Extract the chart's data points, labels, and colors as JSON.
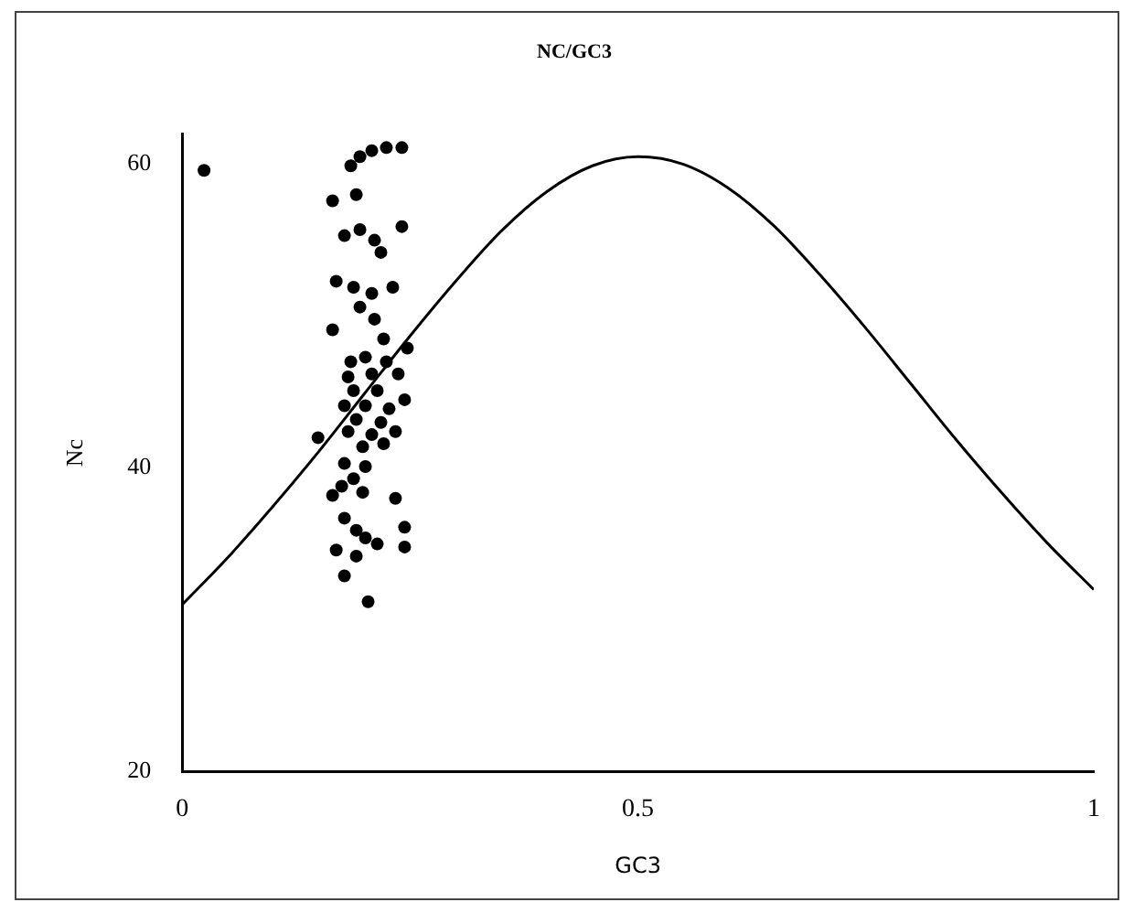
{
  "chart_data": {
    "type": "scatter",
    "title": "NC/GC3",
    "xlabel": "GC3",
    "ylabel": "Nc",
    "xlim": [
      0,
      1
    ],
    "xticks": [
      0,
      0.5,
      1
    ],
    "ylim": [
      20,
      62
    ],
    "yticks": [
      20,
      40,
      60
    ],
    "grid": false,
    "legend": false,
    "marker": "circle",
    "series": [
      {
        "color": "#000000",
        "x": [
          0.024,
          0.185,
          0.195,
          0.208,
          0.224,
          0.241,
          0.165,
          0.191,
          0.178,
          0.195,
          0.211,
          0.218,
          0.241,
          0.169,
          0.188,
          0.208,
          0.231,
          0.195,
          0.165,
          0.211,
          0.221,
          0.247,
          0.185,
          0.201,
          0.224,
          0.182,
          0.208,
          0.237,
          0.188,
          0.214,
          0.244,
          0.178,
          0.201,
          0.227,
          0.191,
          0.218,
          0.182,
          0.208,
          0.234,
          0.149,
          0.198,
          0.221,
          0.178,
          0.201,
          0.188,
          0.175,
          0.198,
          0.165,
          0.234,
          0.178,
          0.191,
          0.201,
          0.214,
          0.244,
          0.244,
          0.169,
          0.191,
          0.178,
          0.204
        ],
        "values": [
          59.6,
          59.9,
          60.5,
          60.9,
          61.1,
          61.1,
          57.6,
          58.0,
          55.3,
          55.7,
          55.0,
          54.2,
          55.9,
          52.3,
          51.9,
          51.5,
          51.9,
          50.6,
          49.1,
          49.8,
          48.5,
          47.9,
          47.0,
          47.3,
          47.0,
          46.0,
          46.2,
          46.2,
          45.1,
          45.1,
          44.5,
          44.1,
          44.1,
          43.9,
          43.2,
          43.0,
          42.4,
          42.2,
          42.4,
          42.0,
          41.4,
          41.6,
          40.3,
          40.1,
          39.3,
          38.8,
          38.4,
          38.2,
          38.0,
          36.7,
          35.9,
          35.4,
          35.0,
          36.1,
          34.8,
          34.6,
          34.2,
          32.9,
          31.2
        ]
      },
      {
        "type": "line",
        "color": "#000000",
        "marker": "none",
        "x": [
          0,
          0.05,
          0.1,
          0.15,
          0.2,
          0.25,
          0.3,
          0.35,
          0.4,
          0.45,
          0.5,
          0.55,
          0.6,
          0.65,
          0.7,
          0.75,
          0.8,
          0.85,
          0.9,
          0.95,
          1
        ],
        "values": [
          31.0,
          34.1,
          37.5,
          41.1,
          44.9,
          48.7,
          52.3,
          55.6,
          58.2,
          59.9,
          60.5,
          60.0,
          58.4,
          55.9,
          52.7,
          49.2,
          45.5,
          41.8,
          38.3,
          35.0,
          32.0
        ]
      }
    ]
  }
}
